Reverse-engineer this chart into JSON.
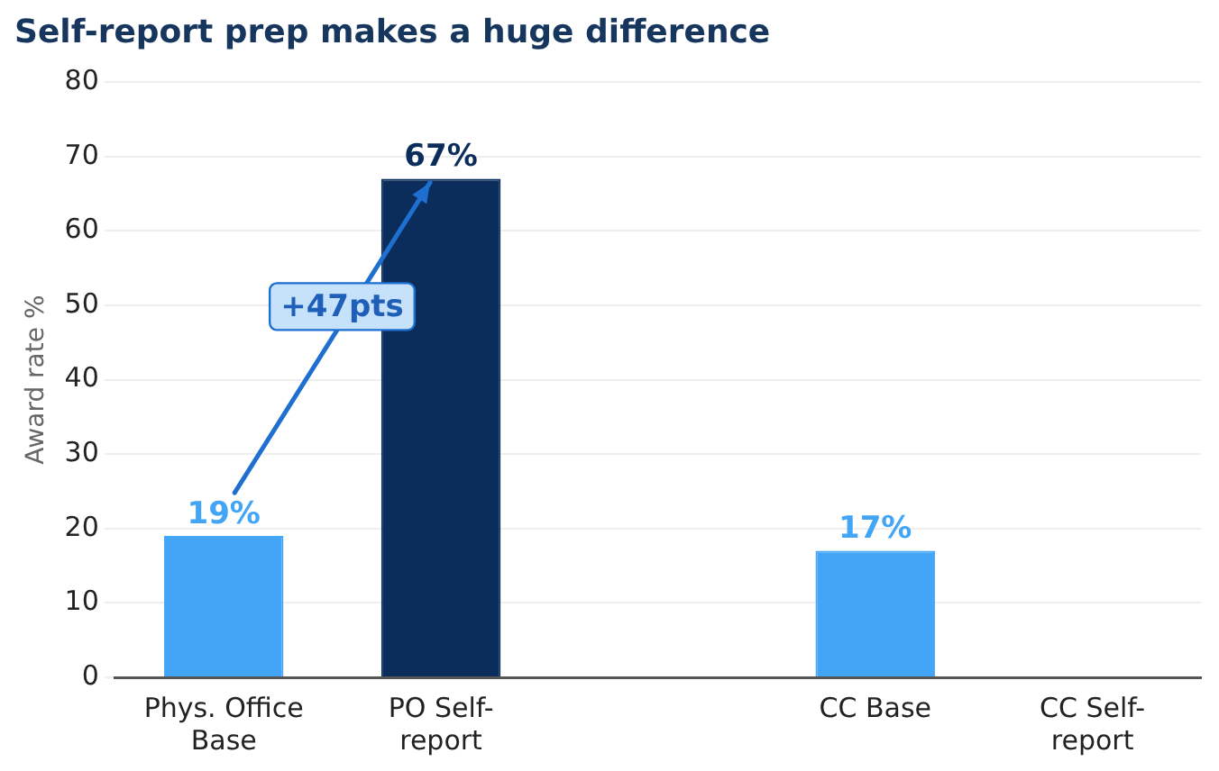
{
  "chart_data": {
    "type": "bar",
    "title": "Self-report prep makes a huge difference",
    "ylabel": "Award rate %",
    "categories": [
      "Phys. Office\nBase",
      "PO Self-\nreport",
      null,
      "CC Base",
      "CC Self-\nreport"
    ],
    "values": [
      19,
      67,
      null,
      17,
      0
    ],
    "colors": [
      "#42a5f5",
      "#0b2d5b",
      "#0b2d5b",
      "#42a5f5",
      "#0b2d5b"
    ],
    "value_labels": [
      "19%",
      "67%",
      null,
      "17%",
      null
    ],
    "annotations": [
      "+47pts"
    ],
    "ylim": [
      0,
      80
    ],
    "yticks": [
      0,
      10,
      20,
      30,
      40,
      50,
      60,
      70,
      80
    ],
    "grid": "y"
  }
}
